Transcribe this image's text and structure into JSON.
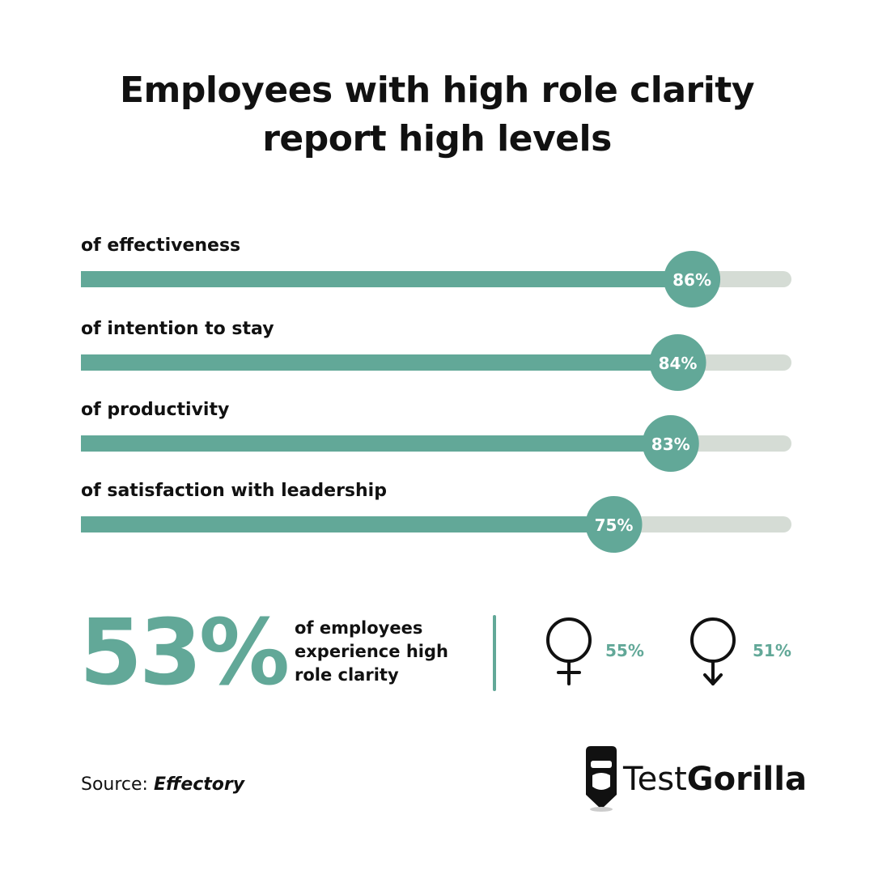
{
  "chart_data": {
    "type": "progress",
    "title": "Employees with high role clarity report high levels",
    "categories": [
      "of effectiveness",
      "of intention to stay",
      "of productivity",
      "of satisfaction with leadership"
    ],
    "values": [
      86,
      84,
      83,
      75
    ],
    "value_labels": [
      "86%",
      "84%",
      "83%",
      "75%"
    ],
    "xlim": [
      0,
      100
    ],
    "color": "#62a898",
    "track_color": "#d5dcd5"
  },
  "highlight": {
    "value_label": "53%",
    "text": "of employees experience high role clarity",
    "female": "55%",
    "male": "51%"
  },
  "footer": {
    "source_prefix": "Source:",
    "source": "Effectory",
    "logo_light": "Test",
    "logo_bold": "Gorilla"
  }
}
